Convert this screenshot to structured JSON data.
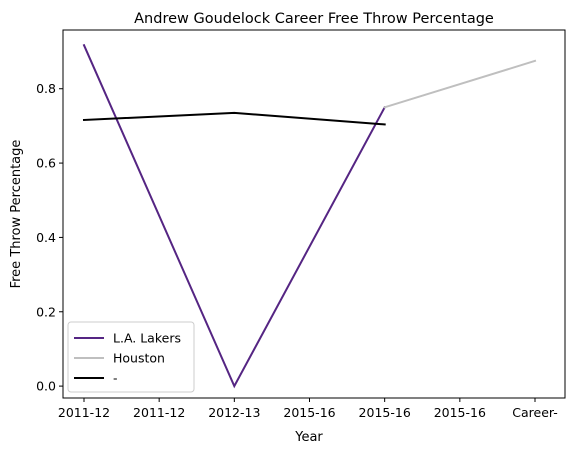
{
  "chart_data": {
    "type": "line",
    "title": "Andrew Goudelock Career Free Throw Percentage",
    "xlabel": "Year",
    "ylabel": "Free Throw Percentage",
    "x_tick_labels": [
      "2011-12",
      "2011-12",
      "2012-13",
      "2015-16",
      "2015-16",
      "2015-16",
      "Career-"
    ],
    "ylim": [
      -0.032,
      0.958
    ],
    "y_ticks": [
      0.0,
      0.2,
      0.4,
      0.6,
      0.8
    ],
    "y_tick_labels": [
      "0.0",
      "0.2",
      "0.4",
      "0.6",
      "0.8"
    ],
    "grid": false,
    "legend_position": "lower-left",
    "series": [
      {
        "name": "L.A. Lakers",
        "color": "#552583",
        "x": [
          0,
          2,
          4
        ],
        "values": [
          0.917,
          0.0,
          0.75
        ]
      },
      {
        "name": "Houston",
        "color": "#bfbfbf",
        "x": [
          4,
          6
        ],
        "values": [
          0.75,
          0.875
        ]
      },
      {
        "name": "-",
        "color": "#000000",
        "x": [
          0,
          2,
          4
        ],
        "values": [
          0.716,
          0.735,
          0.704
        ]
      }
    ]
  }
}
